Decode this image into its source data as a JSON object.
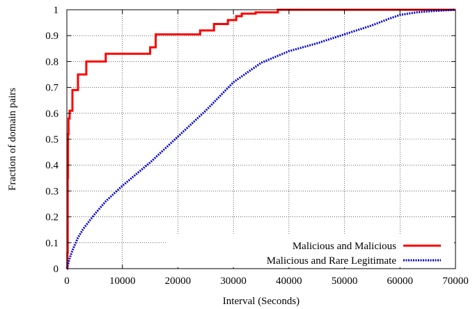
{
  "chart_data": {
    "type": "line",
    "title": "",
    "xlabel": "Interval (Seconds)",
    "ylabel": "Fraction of domain pairs",
    "xlim": [
      0,
      70000
    ],
    "ylim": [
      0,
      1
    ],
    "xticks": [
      "0",
      "10000",
      "20000",
      "30000",
      "40000",
      "50000",
      "60000",
      "70000"
    ],
    "yticks": [
      "0",
      "0.1",
      "0.2",
      "0.3",
      "0.4",
      "0.5",
      "0.6",
      "0.7",
      "0.8",
      "0.9",
      "1"
    ],
    "grid": true,
    "legend_position": "bottom-right",
    "series": [
      {
        "name": "Malicious and Malicious",
        "color": "#ff0000",
        "style": "solid-step",
        "x": [
          0,
          100,
          150,
          200,
          300,
          500,
          700,
          1000,
          1600,
          2000,
          3000,
          3500,
          7000,
          15000,
          16000,
          24000,
          24500,
          26500,
          28000,
          29000,
          30000,
          30500,
          31500,
          34000,
          38000,
          70000
        ],
        "y": [
          0,
          0.06,
          0.35,
          0.52,
          0.58,
          0.61,
          0.61,
          0.69,
          0.69,
          0.75,
          0.75,
          0.8,
          0.83,
          0.855,
          0.905,
          0.92,
          0.92,
          0.945,
          0.945,
          0.96,
          0.96,
          0.975,
          0.985,
          0.99,
          1.0,
          1.0
        ]
      },
      {
        "name": "Malicious and Rare Legitimate",
        "color": "#0000cc",
        "style": "dashed",
        "x": [
          0,
          500,
          1000,
          2000,
          3000,
          5000,
          7000,
          10000,
          15000,
          20000,
          25000,
          30000,
          35000,
          40000,
          45000,
          50000,
          55000,
          58000,
          60000,
          63000,
          66000,
          70000
        ],
        "y": [
          0,
          0.04,
          0.07,
          0.12,
          0.155,
          0.21,
          0.26,
          0.32,
          0.41,
          0.51,
          0.61,
          0.72,
          0.795,
          0.84,
          0.87,
          0.905,
          0.94,
          0.965,
          0.98,
          0.99,
          0.995,
          1.0
        ]
      }
    ]
  }
}
